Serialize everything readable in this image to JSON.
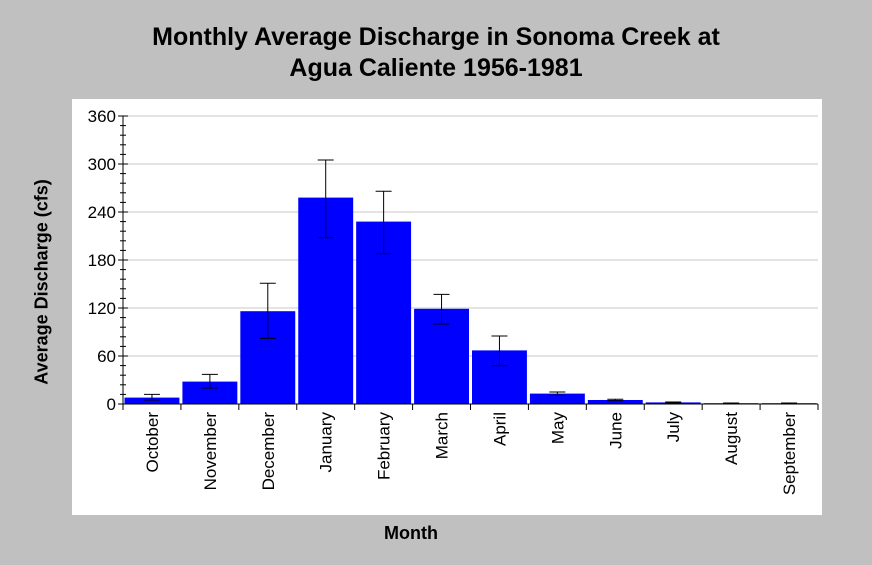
{
  "chart_data": {
    "type": "bar",
    "title_lines": [
      "Monthly Average Discharge in Sonoma Creek at",
      "Agua Caliente 1956-1981"
    ],
    "xlabel": "Month",
    "ylabel": "Average Discharge (cfs)",
    "ylim": [
      0,
      360
    ],
    "yticks": [
      "0",
      "60",
      "120",
      "180",
      "240",
      "300",
      "360"
    ],
    "grid": true,
    "bar_color": "#0000ff",
    "categories": [
      "October",
      "November",
      "December",
      "January",
      "February",
      "March",
      "April",
      "May",
      "June",
      "July",
      "August",
      "September"
    ],
    "values": [
      8,
      28,
      116,
      258,
      228,
      119,
      67,
      13,
      5,
      2,
      1,
      1
    ],
    "error_low": [
      5,
      20,
      82,
      208,
      188,
      100,
      48,
      11,
      4,
      1.5,
      0.8,
      0.8
    ],
    "error_high": [
      12,
      37,
      151,
      305,
      266,
      137,
      85,
      15,
      6,
      2.5,
      1.2,
      1.2
    ]
  }
}
